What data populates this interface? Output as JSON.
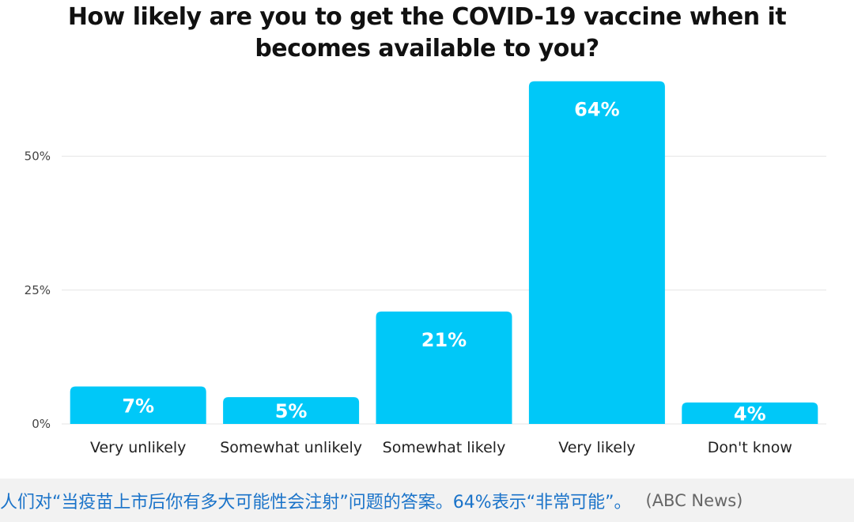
{
  "chart_data": {
    "type": "bar",
    "title_lines": [
      "How likely are you to get the COVID-19 vaccine when  it",
      "becomes available to you?"
    ],
    "categories": [
      "Very unlikely",
      "Somewhat unlikely",
      "Somewhat likely",
      "Very likely",
      "Don't know"
    ],
    "values": [
      7,
      5,
      21,
      64,
      4
    ],
    "value_labels": [
      "7%",
      "5%",
      "21%",
      "64%",
      "4%"
    ],
    "y_ticks": [
      0,
      25,
      50
    ],
    "y_tick_labels": [
      "0%",
      "25%",
      "50%"
    ],
    "ylim": [
      0,
      64
    ],
    "grid": true,
    "bar_color": "#00c8f8"
  },
  "caption": {
    "text": "人们对“当疫苗上市后你有多大可能性会注射”问题的答案。64%表示“非常可能”。",
    "source": "(ABC News)"
  }
}
